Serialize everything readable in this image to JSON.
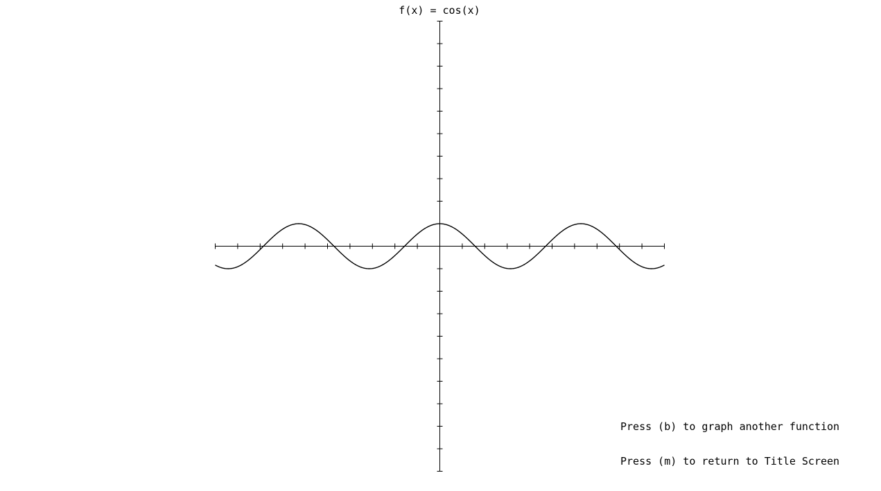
{
  "title": "f(x) = cos(x)",
  "instructions": {
    "graph_another": "Press (b) to graph another function",
    "return_title": "Press (m) to return to Title Screen"
  },
  "colors": {
    "background": "#ffffff",
    "axis": "#000000",
    "curve": "#000000"
  },
  "chart_data": {
    "type": "line",
    "title": "f(x) = cos(x)",
    "function": "cos(x)",
    "xlim": [
      -10,
      10
    ],
    "ylim": [
      -10,
      10
    ],
    "x_tick_step": 1,
    "y_tick_step": 1,
    "tick_labels": false,
    "grid": false,
    "series": [
      {
        "x": [
          -10,
          -9,
          -8,
          -7,
          -6,
          -5,
          -4,
          -3,
          -2,
          -1,
          0,
          1,
          2,
          3,
          4,
          5,
          6,
          7,
          8,
          9,
          10
        ],
        "y": [
          -0.839,
          -0.911,
          -0.146,
          0.754,
          0.96,
          0.284,
          -0.654,
          -0.99,
          -0.416,
          0.54,
          1.0,
          0.54,
          -0.416,
          -0.99,
          -0.654,
          0.284,
          0.96,
          0.754,
          -0.146,
          -0.911,
          -0.839
        ]
      }
    ]
  }
}
